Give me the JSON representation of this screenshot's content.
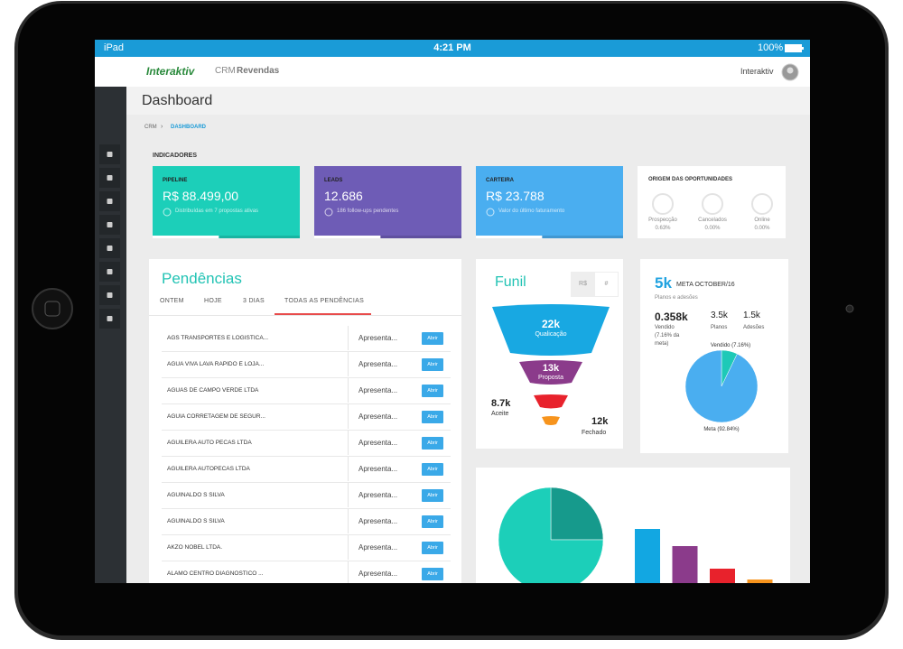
{
  "status_bar": {
    "device": "iPad",
    "time": "4:21 PM",
    "battery": "100%"
  },
  "header": {
    "logo": "Interaktiv",
    "app": "CRM",
    "app_bold": "Revendas",
    "user": "Interaktiv"
  },
  "page_title": "Dashboard",
  "breadcrumb": [
    "CRM",
    "DASHBOARD"
  ],
  "indicators": {
    "heading": "INDICADORES",
    "cards": [
      {
        "label": "PIPELINE",
        "value": "R$ 88.499,00",
        "note": "Distribuídas em 7 propostas ativas",
        "progress": 45,
        "color": "#1ccfb9"
      },
      {
        "label": "LEADS",
        "value": "12.686",
        "note": "186 follow-ups pendentes",
        "progress": 45,
        "color": "#6e5cb6"
      },
      {
        "label": "CARTEIRA",
        "value": "R$ 23.788",
        "note": "Valor do último faturamento",
        "progress": 45,
        "color": "#4aaef0"
      }
    ],
    "origin": {
      "title": "ORIGEM DAS OPORTUNIDADES",
      "items": [
        {
          "label": "Prospecção",
          "value": "0.63%"
        },
        {
          "label": "Cancelados",
          "value": "0.00%"
        },
        {
          "label": "Online",
          "value": "0.00%"
        }
      ]
    }
  },
  "pendencias": {
    "title": "Pendências",
    "tabs": [
      "ONTEM",
      "HOJE",
      "3 DIAS",
      "TODAS AS PENDÊNCIAS"
    ],
    "active_tab": 3,
    "button": "Abrir",
    "rows": [
      {
        "name": "AGS TRANSPORTES E LOGISTICA...",
        "status": "Apresenta..."
      },
      {
        "name": "AGUA VIVA LAVA RAPIDO E LOJA...",
        "status": "Apresenta..."
      },
      {
        "name": "AGUAS DE CAMPO VERDE LTDA",
        "status": "Apresenta..."
      },
      {
        "name": "AGUIA CORRETAGEM DE SEGUR...",
        "status": "Apresenta..."
      },
      {
        "name": "AGUILERA AUTO PECAS LTDA",
        "status": "Apresenta..."
      },
      {
        "name": "AGUILERA AUTOPECAS LTDA",
        "status": "Apresenta..."
      },
      {
        "name": "AGUINALDO S SILVA",
        "status": "Apresenta..."
      },
      {
        "name": "AGUINALDO S SILVA",
        "status": "Apresenta..."
      },
      {
        "name": "AKZO NOBEL LTDA.",
        "status": "Apresenta..."
      },
      {
        "name": "ALAMO CENTRO DIAGNOSTICO ...",
        "status": "Apresenta..."
      }
    ]
  },
  "funil": {
    "title": "Funil",
    "toggles": [
      "R$",
      "#"
    ],
    "stages": [
      {
        "value": "22k",
        "label": "Qualicação"
      },
      {
        "value": "13k",
        "label": "Proposta"
      },
      {
        "value": "8.7k",
        "label": "Aceite"
      },
      {
        "value": "12k",
        "label": "Fechado"
      }
    ]
  },
  "meta": {
    "value": "5k",
    "label": "META OCTOBER/16",
    "subtitle": "Planos e adesões",
    "stats": [
      {
        "value": "0.358k",
        "label": "Vendido (7.16% da meta)"
      },
      {
        "value": "3.5k",
        "label": "Planos"
      },
      {
        "value": "1.5k",
        "label": "Adesões"
      }
    ],
    "chart_data": {
      "type": "pie",
      "series": [
        {
          "name": "Vendido (7.16%)",
          "value": 7.16,
          "color": "#1ec9b7"
        },
        {
          "name": "Meta (92.84%)",
          "value": 92.84,
          "color": "#4aaef0"
        }
      ]
    }
  },
  "bottom": {
    "pie": {
      "type": "pie",
      "values": [
        25,
        75
      ],
      "colors": [
        "#169a8c",
        "#1ccfb9"
      ]
    },
    "bars": {
      "type": "bar",
      "values": [
        118,
        99,
        74,
        62
      ],
      "colors": [
        "#12a7e2",
        "#8b3b8b",
        "#e8222c",
        "#f7941d"
      ]
    }
  }
}
